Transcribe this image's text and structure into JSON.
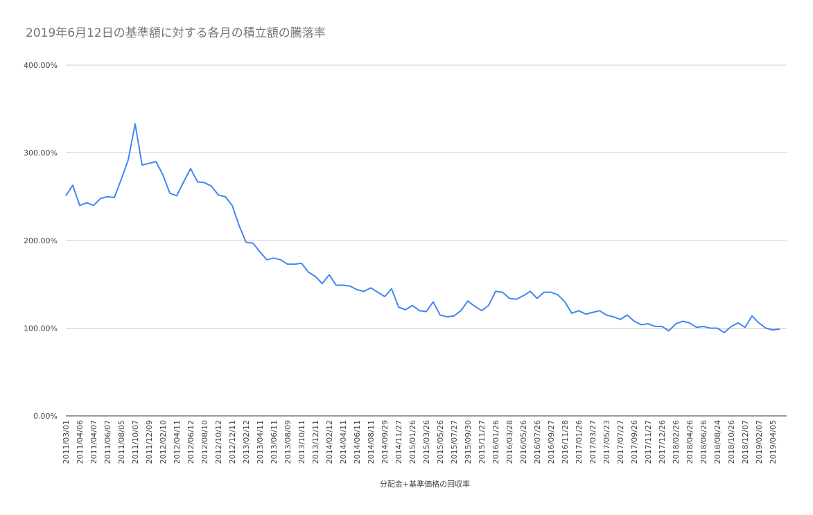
{
  "chart_data": {
    "type": "line",
    "title": "2019年6月12日の基準額に対する各月の積立額の騰落率",
    "x_label": "分配金+基準価格の回収率",
    "categories": [
      "2011/03/01",
      null,
      "2011/04/06",
      null,
      "2011/04/07",
      null,
      "2011/06/07",
      null,
      "2011/08/05",
      null,
      "2011/10/07",
      null,
      "2011/12/09",
      null,
      "2012/02/10",
      null,
      "2012/04/11",
      null,
      "2012/06/12",
      null,
      "2012/08/10",
      null,
      "2012/10/12",
      null,
      "2012/12/11",
      null,
      "2013/02/12",
      null,
      "2013/04/11",
      null,
      "2013/06/11",
      null,
      "2013/08/09",
      null,
      "2013/10/11",
      null,
      "2013/12/11",
      null,
      "2014/02/12",
      null,
      "2014/04/11",
      null,
      "2014/06/11",
      null,
      "2014/08/11",
      null,
      "2014/09/29",
      null,
      "2014/11/27",
      null,
      "2015/01/26",
      null,
      "2015/03/26",
      null,
      "2015/05/26",
      null,
      "2015/07/27",
      null,
      "2915/09/30",
      null,
      "2015/11/27",
      null,
      "2016/01/26",
      null,
      "2016/03/28",
      null,
      "2016/05/26",
      null,
      "2016/07/26",
      null,
      "2016/09/27",
      null,
      "2016/11/28",
      null,
      "2017/01/26",
      null,
      "2017/03/27",
      null,
      "2017/05/23",
      null,
      "2017/07/27",
      null,
      "2017/09/26",
      null,
      "2017/11/27",
      null,
      "2017/12/26",
      null,
      "2018/02/26",
      null,
      "2018/04/26",
      null,
      "2018/06/26",
      null,
      "2018/08/24",
      null,
      "2018/10/26",
      null,
      "2018/12/07",
      null,
      "2019/02/07",
      null,
      "2019/04/05",
      null
    ],
    "series": [
      {
        "name": "分配金+基準価格の回収率",
        "color": "#4285f4",
        "values": [
          251,
          263,
          240,
          243,
          240,
          248,
          250,
          249,
          270,
          292,
          333,
          286,
          288,
          290,
          275,
          254,
          251,
          267,
          282,
          267,
          266,
          262,
          252,
          250,
          240,
          217,
          198,
          197,
          187,
          178,
          180,
          178,
          173,
          173,
          174,
          164,
          159,
          151,
          161,
          149,
          149,
          148,
          144,
          142,
          146,
          141,
          136,
          145,
          124,
          121,
          126,
          120,
          119,
          130,
          115,
          113,
          114,
          120,
          131,
          125,
          120,
          126,
          142,
          141,
          134,
          133,
          137,
          142,
          134,
          141,
          141,
          138,
          130,
          117,
          120,
          116,
          118,
          120,
          115,
          113,
          110,
          115,
          108,
          104,
          105,
          102,
          102,
          97,
          105,
          108,
          106,
          101,
          102,
          100,
          100,
          95,
          102,
          106,
          101,
          114,
          106,
          100,
          98,
          99
        ]
      }
    ],
    "ylim": [
      0,
      400
    ],
    "yticks": [
      {
        "value": 0,
        "label": "0.00%"
      },
      {
        "value": 100,
        "label": "100.00%"
      },
      {
        "value": 200,
        "label": "200.00%"
      },
      {
        "value": 300,
        "label": "300.00%"
      },
      {
        "value": 400,
        "label": "400.00%"
      }
    ],
    "grid": true
  }
}
